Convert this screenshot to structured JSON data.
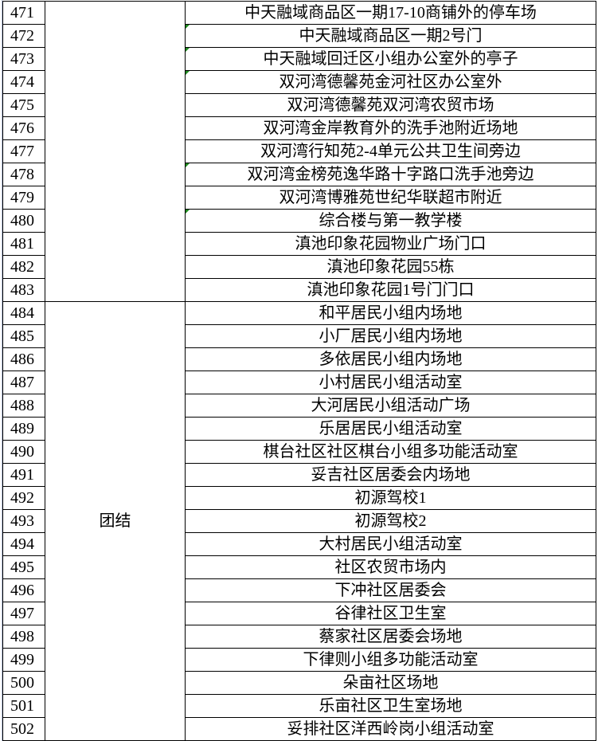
{
  "rows": [
    {
      "no": "471",
      "place": "中天融域商品区一期17-10商铺外的停车场",
      "flag": false
    },
    {
      "no": "472",
      "place": "中天融域商品区一期2号门",
      "flag": true
    },
    {
      "no": "473",
      "place": "中天融域回迁区小组办公室外的亭子",
      "flag": true
    },
    {
      "no": "474",
      "place": "双河湾德馨苑金河社区办公室外",
      "flag": true
    },
    {
      "no": "475",
      "place": "双河湾德馨苑双河湾农贸市场",
      "flag": false
    },
    {
      "no": "476",
      "place": "双河湾金岸教育外的洗手池附近场地",
      "flag": false
    },
    {
      "no": "477",
      "place": "双河湾行知苑2-4单元公共卫生间旁边",
      "flag": false
    },
    {
      "no": "478",
      "place": "双河湾金榜苑逸华路十字路口洗手池旁边",
      "flag": true
    },
    {
      "no": "479",
      "place": "双河湾博雅苑世纪华联超市附近",
      "flag": false
    },
    {
      "no": "480",
      "place": "综合楼与第一教学楼",
      "flag": true
    },
    {
      "no": "481",
      "place": "滇池印象花园物业广场门口",
      "flag": false
    },
    {
      "no": "482",
      "place": "滇池印象花园55栋",
      "flag": false
    },
    {
      "no": "483",
      "place": "滇池印象花园1号门门口",
      "flag": false
    },
    {
      "no": "484",
      "place": "和平居民小组内场地",
      "flag": false
    },
    {
      "no": "485",
      "place": "小厂居民小组内场地",
      "flag": false
    },
    {
      "no": "486",
      "place": "多依居民小组内场地",
      "flag": false
    },
    {
      "no": "487",
      "place": "小村居民小组活动室",
      "flag": false
    },
    {
      "no": "488",
      "place": "大河居民小组活动广场",
      "flag": false
    },
    {
      "no": "489",
      "place": "乐居居民小组活动室",
      "flag": false
    },
    {
      "no": "490",
      "place": "棋台社区社区棋台小组多功能活动室",
      "flag": false
    },
    {
      "no": "491",
      "place": "妥吉社区居委会内场地",
      "flag": false
    },
    {
      "no": "492",
      "place": "初源驾校1",
      "flag": false
    },
    {
      "no": "493",
      "place": "初源驾校2",
      "flag": false
    },
    {
      "no": "494",
      "place": "大村居民小组活动室",
      "flag": false
    },
    {
      "no": "495",
      "place": "社区农贸市场内",
      "flag": false
    },
    {
      "no": "496",
      "place": "下冲社区居委会",
      "flag": false
    },
    {
      "no": "497",
      "place": "谷律社区卫生室",
      "flag": false
    },
    {
      "no": "498",
      "place": "蔡家社区居委会场地",
      "flag": false
    },
    {
      "no": "499",
      "place": "下律则小组多功能活动室",
      "flag": false
    },
    {
      "no": "500",
      "place": "朵亩社区场地",
      "flag": false
    },
    {
      "no": "501",
      "place": "乐亩社区卫生室场地",
      "flag": false
    },
    {
      "no": "502",
      "place": "妥排社区洋西岭岗小组活动室",
      "flag": false
    }
  ],
  "groups": [
    {
      "label": "",
      "start": 0,
      "span": 13
    },
    {
      "label": "团结",
      "start": 13,
      "span": 19
    }
  ],
  "colors": {
    "grid": "#000000",
    "comment_marker": "#1f8a1f"
  }
}
